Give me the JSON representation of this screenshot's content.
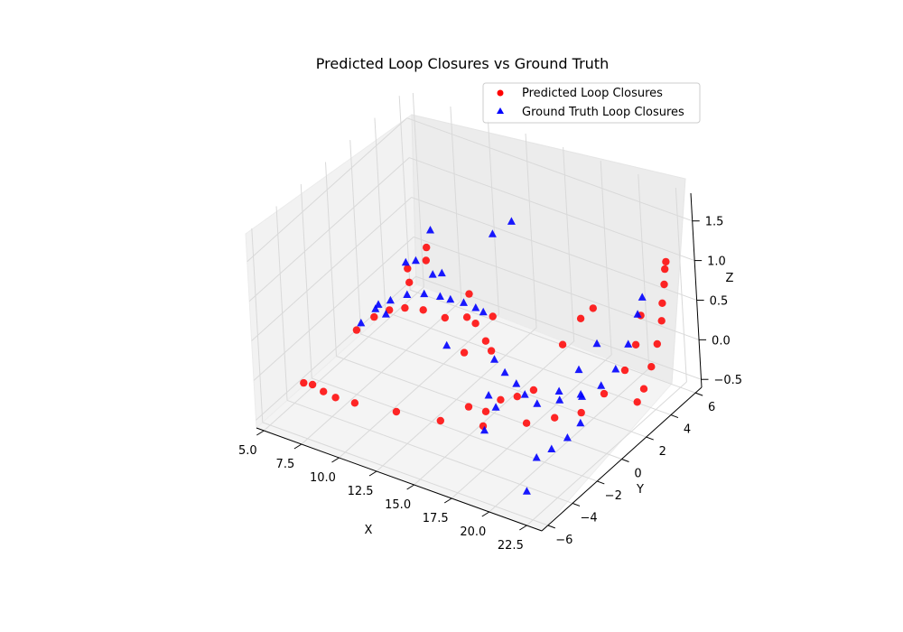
{
  "chart_data": {
    "type": "scatter",
    "projection": "3d",
    "title": "Predicted Loop Closures vs Ground Truth",
    "xlabel": "X",
    "ylabel": "Y",
    "zlabel": "Z",
    "xlim": [
      4.5,
      23.5
    ],
    "ylim": [
      -6.5,
      6.5
    ],
    "zlim": [
      -0.6,
      1.85
    ],
    "xticks": [
      "5.0",
      "7.5",
      "10.0",
      "12.5",
      "15.0",
      "17.5",
      "20.0",
      "22.5"
    ],
    "yticks": [
      "−6",
      "−4",
      "−2",
      "0",
      "2",
      "4",
      "6"
    ],
    "zticks": [
      "−0.5",
      "0.0",
      "0.5",
      "1.0",
      "1.5"
    ],
    "grid": true,
    "legend_position": "upper-right",
    "legend": [
      {
        "label": "Predicted Loop Closures",
        "marker": "circle",
        "color": "#ff0000"
      },
      {
        "label": "Ground Truth Loop Closures",
        "marker": "triangle",
        "color": "#0000ff"
      }
    ],
    "series": [
      {
        "name": "Predicted Loop Closures",
        "marker": "circle",
        "color": "#ff0000",
        "x": [
          7.0,
          7.6,
          8.4,
          9.2,
          10.4,
          12.4,
          14.4,
          16.4,
          18.4,
          19.8,
          21.1,
          22.2,
          23.0,
          23.4,
          23.5,
          6.5,
          7.3,
          8.1,
          8.9,
          9.7,
          10.8,
          11.5,
          9.2,
          8.4,
          7.8,
          7.3,
          10.6,
          11.8,
          13.0,
          12.5,
          13.3,
          14.0,
          15.4,
          16.2,
          16.9,
          17.6,
          18.3,
          21.0,
          21.5,
          22.0,
          22.4,
          22.7,
          22.9,
          23.1,
          23.2,
          23.3,
          20.8,
          21.6,
          22.3
        ],
        "y": [
          -5.5,
          -5.5,
          -5.6,
          -5.6,
          -5.5,
          -4.6,
          -3.5,
          -2.5,
          -1.4,
          -0.8,
          -0.2,
          0.4,
          1.2,
          1.7,
          2.1,
          -0.6,
          -0.1,
          0.2,
          0.5,
          1.0,
          1.4,
          2.3,
          2.0,
          3.0,
          2.2,
          2.7,
          3.6,
          2.6,
          2.6,
          0.8,
          1.6,
          1.2,
          -2.4,
          -2.0,
          -1.6,
          -1.1,
          -0.6,
          4.3,
          4.3,
          4.4,
          4.5,
          4.6,
          4.5,
          4.5,
          4.5,
          4.5,
          -1.0,
          -0.4,
          -0.2
        ],
        "z": [
          0.0,
          0.02,
          0.0,
          -0.02,
          -0.02,
          -0.12,
          -0.25,
          -0.32,
          -0.3,
          -0.22,
          -0.15,
          0.08,
          0.32,
          0.6,
          0.92,
          -0.05,
          0.1,
          0.2,
          0.24,
          0.2,
          0.12,
          0.05,
          0.65,
          0.62,
          0.25,
          0.32,
          0.1,
          -0.05,
          0.12,
          -0.12,
          -0.03,
          -0.05,
          -0.16,
          -0.22,
          -0.08,
          -0.06,
          0.0,
          -0.65,
          -0.45,
          -0.15,
          0.15,
          0.45,
          0.7,
          0.95,
          1.15,
          1.25,
          0.8,
          1.1,
          1.25
        ]
      },
      {
        "name": "Ground Truth Loop Closures",
        "marker": "triangle",
        "color": "#0000ff",
        "x": [
          7.0,
          7.6,
          8.3,
          9.1,
          10.0,
          10.9,
          11.5,
          12.3,
          13.1,
          13.6,
          7.9,
          8.5,
          9.6,
          10.4,
          7.2,
          7.5,
          8.9,
          12.5,
          13.4,
          14.7,
          15.8,
          16.8,
          17.6,
          17.0,
          18.4,
          19.5,
          20.6,
          21.5,
          22.2,
          22.8,
          23.2,
          23.4,
          20.9,
          21.8,
          22.6,
          20.7,
          21.4,
          22.0,
          22.5,
          20.7,
          22.1,
          16.9,
          16.1,
          11.6
        ],
        "y": [
          -0.8,
          -0.3,
          0.1,
          0.5,
          0.8,
          1.0,
          1.1,
          1.2,
          1.2,
          1.2,
          1.9,
          2.0,
          2.0,
          1.8,
          0.4,
          0.6,
          2.8,
          3.5,
          4.0,
          0.6,
          0.1,
          -0.2,
          -0.5,
          -3.1,
          -0.5,
          0.0,
          0.5,
          1.0,
          1.4,
          1.8,
          2.2,
          2.4,
          -1.6,
          -1.0,
          -0.4,
          -3.4,
          -3.0,
          -2.4,
          -1.9,
          -4.3,
          -1.3,
          -2.0,
          -1.6,
          0.5
        ],
        "z": [
          0.1,
          0.25,
          0.35,
          0.42,
          0.45,
          0.45,
          0.44,
          0.44,
          0.43,
          0.41,
          0.55,
          0.6,
          0.5,
          0.6,
          0.18,
          0.05,
          0.9,
          1.0,
          1.15,
          -0.03,
          -0.05,
          -0.08,
          -0.12,
          -0.25,
          -0.18,
          -0.13,
          -0.08,
          0.05,
          0.25,
          0.55,
          0.9,
          1.1,
          0.3,
          0.55,
          0.85,
          -0.3,
          -0.2,
          -0.1,
          0.05,
          -0.6,
          0.3,
          -0.12,
          -0.08,
          -0.05
        ]
      }
    ]
  }
}
